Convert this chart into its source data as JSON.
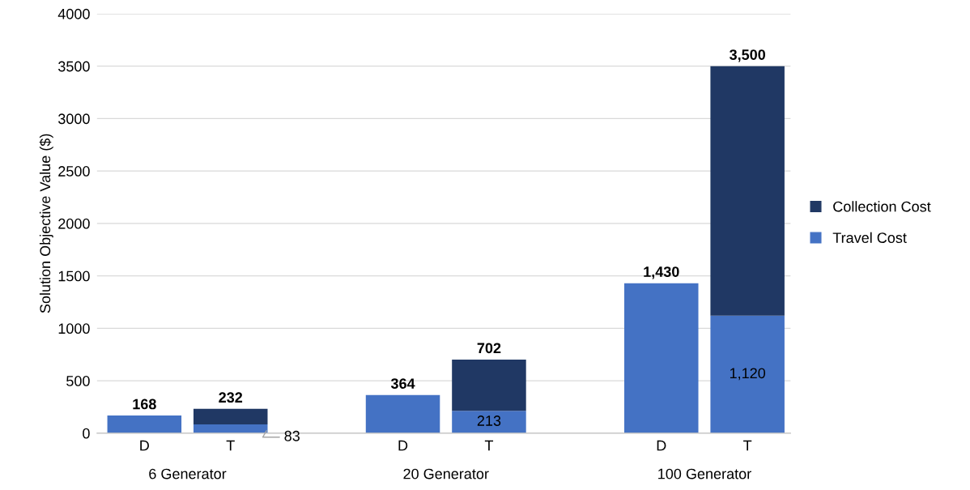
{
  "chart_data": {
    "type": "bar",
    "stacked": true,
    "ylabel": "Solution Objective Value ($)",
    "categories": [
      "D",
      "T",
      null,
      "D",
      "T",
      null,
      "D",
      "T"
    ],
    "series": [
      {
        "name": "Travel Cost",
        "color": "#4472c4",
        "values": [
          168,
          83,
          null,
          364,
          213,
          null,
          1430,
          1120
        ],
        "value_labels": [
          null,
          "83",
          null,
          null,
          "213",
          null,
          null,
          "1,120"
        ]
      },
      {
        "name": "Collection Cost",
        "color": "#203864",
        "values": [
          null,
          149,
          null,
          null,
          489,
          null,
          null,
          2380
        ]
      }
    ],
    "totals": [
      "168",
      "232",
      null,
      "364",
      "702",
      null,
      "1,430",
      "3,500"
    ],
    "annotations": [
      "6 Generator",
      "20 Generator",
      "100 Generator"
    ],
    "ylim": [
      0,
      4000
    ],
    "yticks": [
      0,
      500,
      1000,
      1500,
      2000,
      2500,
      3000,
      3500,
      4000
    ],
    "grid": "y",
    "legend": "right"
  }
}
